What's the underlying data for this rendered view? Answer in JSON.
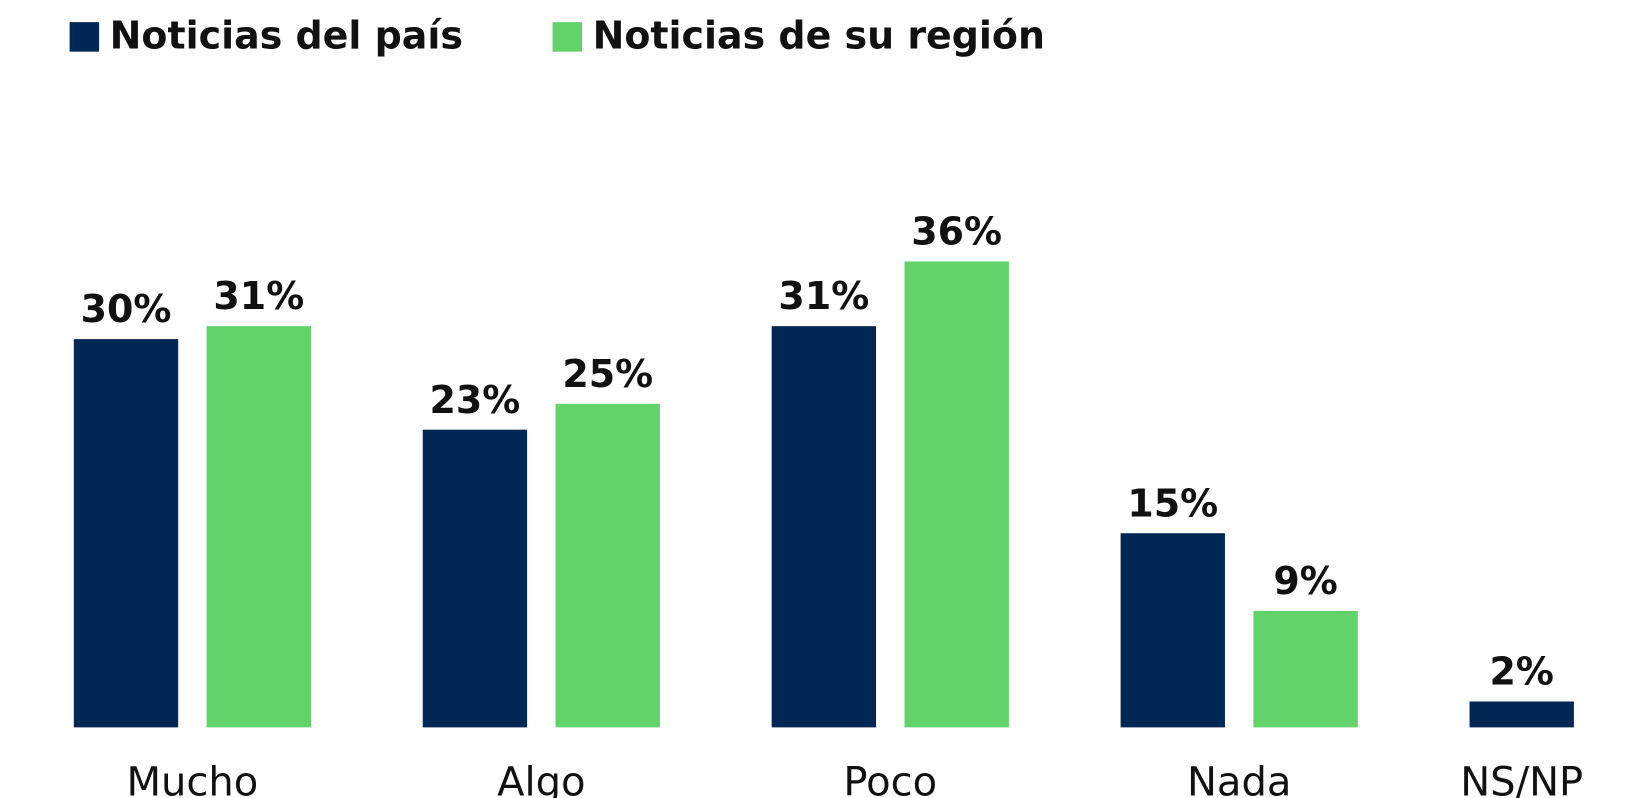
{
  "chart_data": {
    "type": "bar",
    "categories": [
      "Mucho",
      "Algo",
      "Poco",
      "Nada",
      "NS/NP"
    ],
    "series": [
      {
        "name": "Noticias del país",
        "color": "#012754",
        "values": [
          30,
          23,
          31,
          15,
          2
        ],
        "value_labels": [
          "30%",
          "23%",
          "31%",
          "15%",
          "2%"
        ]
      },
      {
        "name": "Noticias de su región",
        "color": "#62d36a",
        "values": [
          31,
          25,
          36,
          9,
          null
        ],
        "value_labels": [
          "31%",
          "25%",
          "36%",
          "9%",
          null
        ]
      }
    ],
    "legend": "top-left"
  }
}
